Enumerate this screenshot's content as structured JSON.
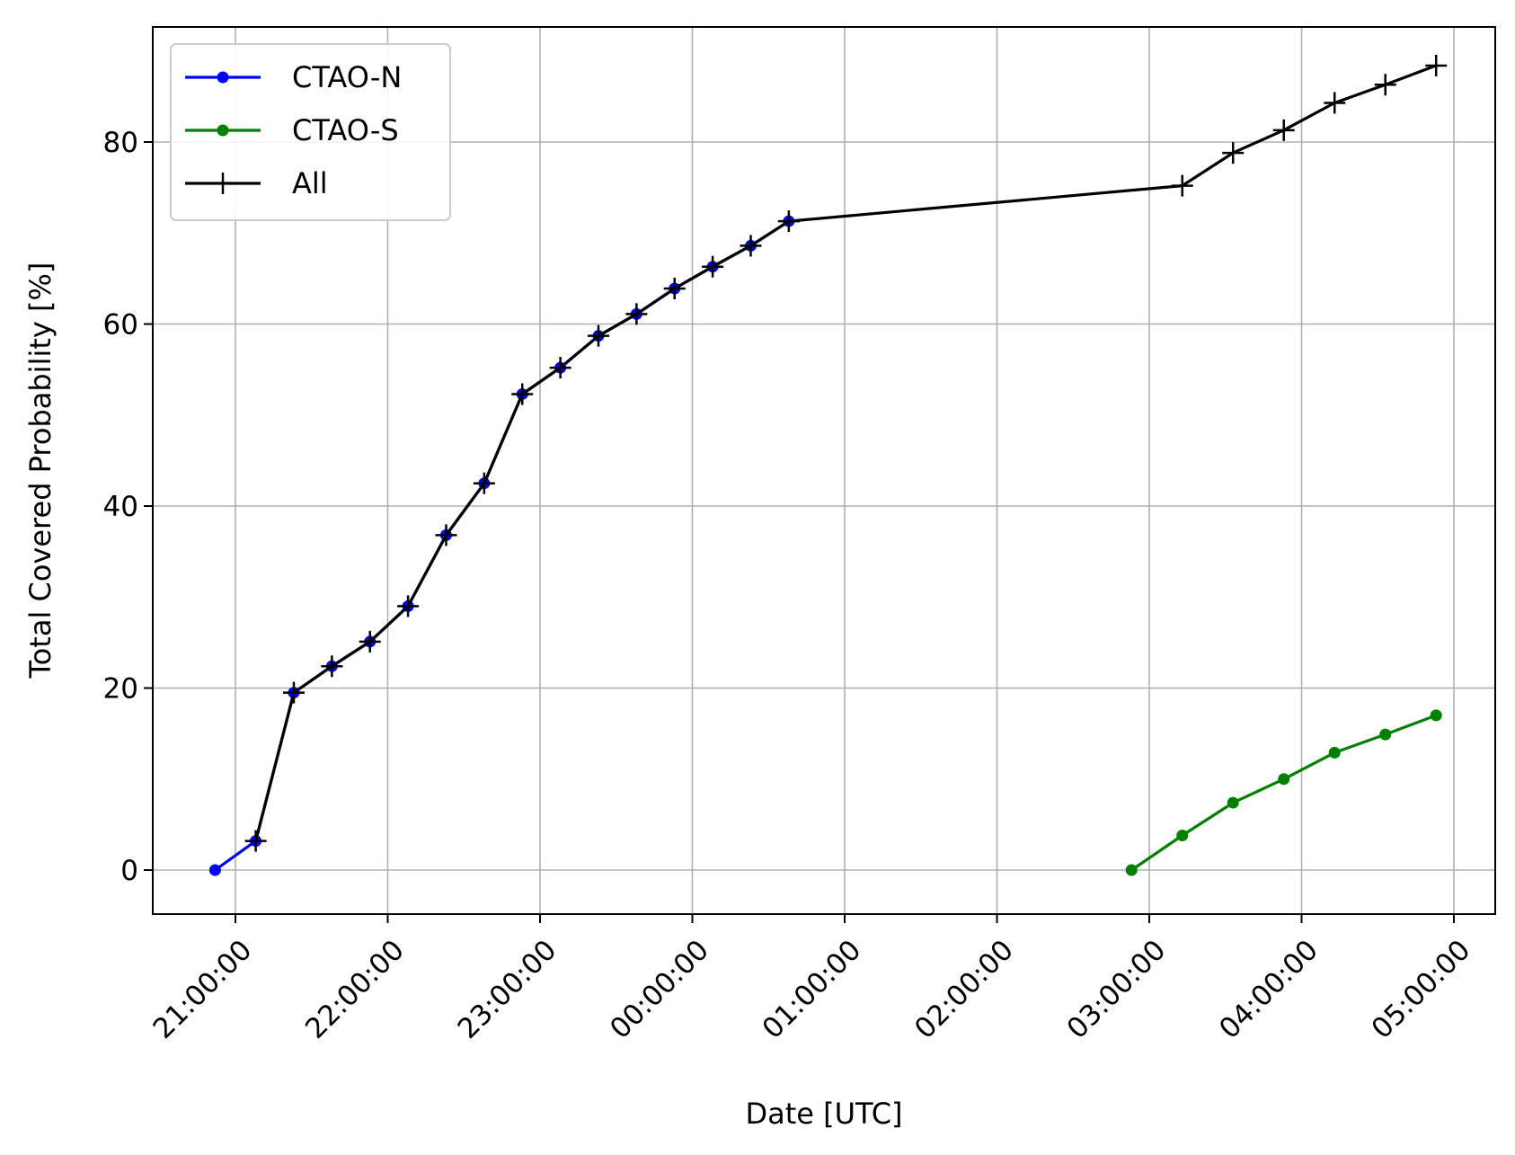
{
  "chart_data": {
    "type": "line",
    "xlabel": "Date [UTC]",
    "ylabel": "Total Covered Probability [%]",
    "ylim": [
      -4.5,
      93
    ],
    "grid": true,
    "legend_position": "top-left",
    "x_ticks": [
      "21:00:00",
      "22:00:00",
      "23:00:00",
      "00:00:00",
      "01:00:00",
      "02:00:00",
      "03:00:00",
      "04:00:00",
      "05:00:00"
    ],
    "y_ticks": [
      "0",
      "20",
      "40",
      "60",
      "80"
    ],
    "series": [
      {
        "name": "CTAO-N",
        "color": "#0000ff",
        "marker": "dot",
        "x": [
          "20:52",
          "21:08",
          "21:23",
          "21:38",
          "21:53",
          "22:08",
          "22:23",
          "22:38",
          "22:53",
          "23:08",
          "23:23",
          "23:38",
          "23:53",
          "00:08",
          "00:23",
          "00:38"
        ],
        "y": [
          0,
          3.2,
          19.5,
          22.4,
          25.1,
          29.0,
          36.8,
          42.5,
          52.3,
          55.2,
          58.7,
          61.1,
          63.9,
          66.3,
          68.6,
          71.3
        ]
      },
      {
        "name": "CTAO-S",
        "color": "#008000",
        "marker": "dot",
        "x": [
          "02:53",
          "03:13",
          "03:33",
          "03:53",
          "04:13",
          "04:33",
          "04:53"
        ],
        "y": [
          0,
          3.8,
          7.4,
          10.0,
          12.9,
          14.9,
          17.0
        ]
      },
      {
        "name": "All",
        "color": "#000000",
        "marker": "plus",
        "x": [
          "21:08",
          "21:23",
          "21:38",
          "21:53",
          "22:08",
          "22:23",
          "22:38",
          "22:53",
          "23:08",
          "23:23",
          "23:38",
          "23:53",
          "00:08",
          "00:23",
          "00:38",
          "03:13",
          "03:33",
          "03:53",
          "04:13",
          "04:33",
          "04:53"
        ],
        "y": [
          3.2,
          19.5,
          22.4,
          25.1,
          29.0,
          36.8,
          42.5,
          52.3,
          55.2,
          58.7,
          61.1,
          63.9,
          66.3,
          68.6,
          71.3,
          75.2,
          78.8,
          81.3,
          84.3,
          86.3,
          88.4
        ]
      }
    ]
  }
}
